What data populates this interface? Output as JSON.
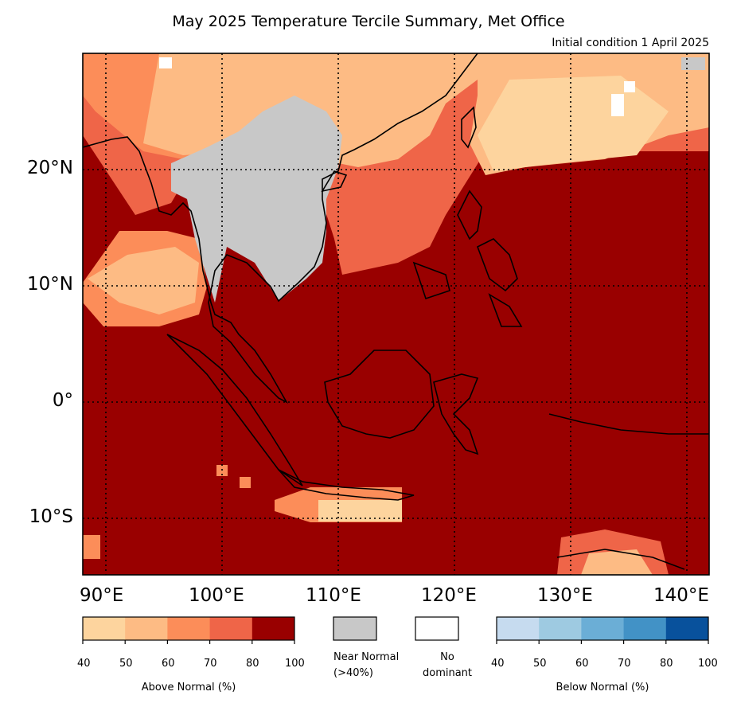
{
  "title": "May 2025 Temperature Tercile Summary, Met Office",
  "subtitle": "Initial condition 1 April 2025",
  "axes": {
    "lat_ticks": [
      "20°N",
      "10°N",
      "0°",
      "10°S"
    ],
    "lon_ticks": [
      "90°E",
      "100°E",
      "110°E",
      "120°E",
      "130°E",
      "140°E"
    ]
  },
  "legend": {
    "above": {
      "caption": "Above Normal (%)",
      "ticks": [
        "40",
        "50",
        "60",
        "70",
        "80",
        "100"
      ],
      "colors": [
        "#fdd49e",
        "#fdbb84",
        "#fc8d59",
        "#ef6548",
        "#990000"
      ]
    },
    "near": {
      "caption_line1": "Near Normal",
      "caption_line2": "(>40%)",
      "color": "#c8c8c8"
    },
    "none": {
      "caption_line1": "No",
      "caption_line2": "dominant",
      "color": "#ffffff"
    },
    "below": {
      "caption": "Below Normal (%)",
      "ticks": [
        "40",
        "50",
        "60",
        "70",
        "80",
        "100"
      ],
      "colors": [
        "#c6dbef",
        "#9ecae1",
        "#6baed6",
        "#4292c6",
        "#08519c"
      ]
    }
  }
}
